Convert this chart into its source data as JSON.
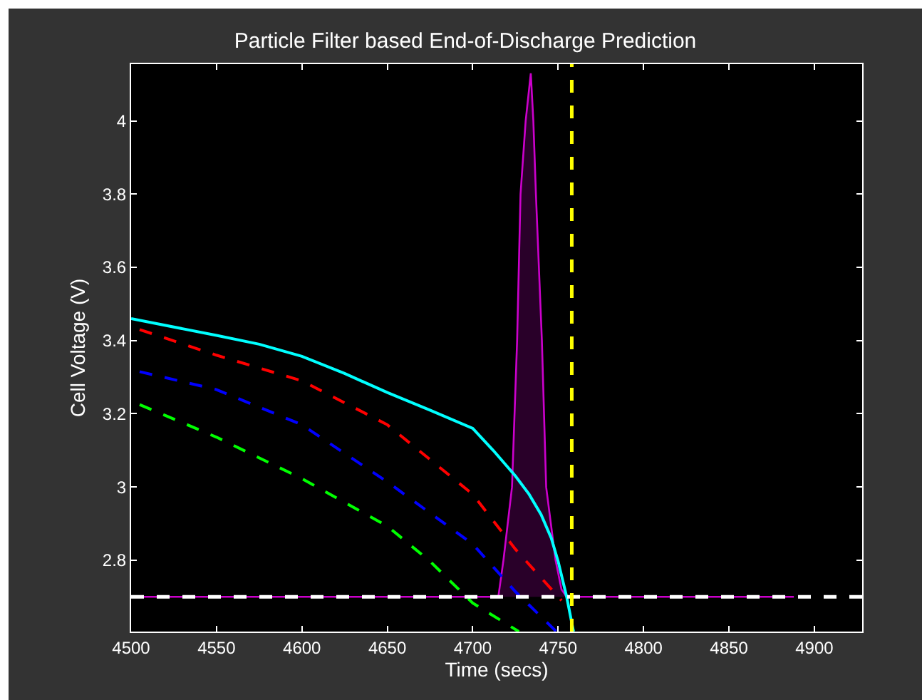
{
  "chart_data": {
    "type": "line",
    "title": "Particle Filter based End-of-Discharge Prediction",
    "xlabel": "Time (secs)",
    "ylabel": "Cell Voltage (V)",
    "xlim": [
      4500,
      4928
    ],
    "ylim": [
      2.605,
      4.155
    ],
    "xticks": [
      4500,
      4550,
      4600,
      4650,
      4700,
      4750,
      4800,
      4850,
      4900
    ],
    "yticks": [
      2.8,
      3,
      3.2,
      3.4,
      3.6,
      3.8,
      4
    ],
    "grid": false,
    "series": [
      {
        "type": "area",
        "color": "#cc00cc",
        "line_style": "solid",
        "x": [
          4500,
          4715,
          4718,
          4723,
          4726,
          4728,
          4731,
          4734,
          4735.5,
          4737,
          4740.5,
          4743,
          4748.5,
          4752,
          4755,
          4888
        ],
        "values": [
          2.7,
          2.7,
          2.8,
          3.0,
          3.4,
          3.8,
          4.0,
          4.13,
          4.0,
          3.8,
          3.4,
          3.0,
          2.8,
          2.72,
          2.7,
          2.7
        ]
      },
      {
        "color": "#00ffff",
        "line_style": "solid",
        "x": [
          4500,
          4550,
          4575,
          4600,
          4625,
          4650,
          4675,
          4700,
          4712,
          4725,
          4733,
          4740,
          4746,
          4750,
          4755,
          4759
        ],
        "values": [
          3.46,
          3.414,
          3.39,
          3.357,
          3.31,
          3.258,
          3.21,
          3.16,
          3.1,
          3.03,
          2.98,
          2.925,
          2.86,
          2.797,
          2.7,
          2.605
        ]
      },
      {
        "color": "#ff0000",
        "line_style": "dashed",
        "x": [
          4505,
          4550,
          4600,
          4650,
          4700,
          4725,
          4752
        ],
        "values": [
          3.43,
          3.36,
          3.29,
          3.17,
          2.98,
          2.83,
          2.69
        ]
      },
      {
        "color": "#0000ff",
        "line_style": "dashed",
        "x": [
          4505,
          4550,
          4600,
          4650,
          4700,
          4725,
          4749
        ],
        "values": [
          3.315,
          3.266,
          3.17,
          3.014,
          2.844,
          2.714,
          2.605
        ]
      },
      {
        "color": "#00ff00",
        "line_style": "dashed",
        "x": [
          4505,
          4550,
          4600,
          4650,
          4675,
          4700,
          4727
        ],
        "values": [
          3.225,
          3.136,
          3.023,
          2.893,
          2.797,
          2.683,
          2.605
        ]
      }
    ],
    "ref_lines": [
      {
        "axis": "y",
        "value": 2.7,
        "color": "#ffffff",
        "line_style": "dashed"
      },
      {
        "axis": "x",
        "value": 4758,
        "color": "#ffff00",
        "line_style": "dashed"
      }
    ]
  }
}
